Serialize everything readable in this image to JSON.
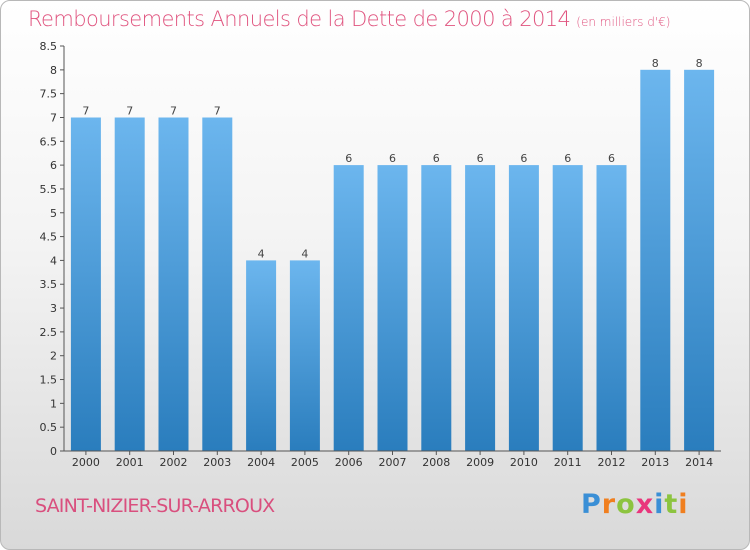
{
  "title": "Remboursements Annuels de la Dette de 2000 à 2014",
  "unit": "(en milliers d'€)",
  "commune": "SAINT-NIZIER-SUR-ARROUX",
  "logo": {
    "text": "Proxiti",
    "letters": [
      {
        "ch": "P",
        "color": "#3a8fd6"
      },
      {
        "ch": "r",
        "color": "#f07f1f"
      },
      {
        "ch": "o",
        "color": "#8cc43f"
      },
      {
        "ch": "x",
        "color": "#e9367c"
      },
      {
        "ch": "i",
        "color": "#3a8fd6"
      },
      {
        "ch": "t",
        "color": "#8cc43f"
      },
      {
        "ch": "i",
        "color": "#f07f1f"
      }
    ]
  },
  "colors": {
    "title": "#e0547f",
    "bar_top": "#6cb6ee",
    "bar_bottom": "#2a7dbd",
    "axis": "#555555"
  },
  "chart_data": {
    "type": "bar",
    "title": "Remboursements Annuels de la Dette de 2000 à 2014",
    "xlabel": "",
    "ylabel": "",
    "categories": [
      "2000",
      "2001",
      "2002",
      "2003",
      "2004",
      "2005",
      "2006",
      "2007",
      "2008",
      "2009",
      "2010",
      "2011",
      "2012",
      "2013",
      "2014"
    ],
    "values": [
      7,
      7,
      7,
      7,
      4,
      4,
      6,
      6,
      6,
      6,
      6,
      6,
      6,
      8,
      8
    ],
    "data_labels": [
      "7",
      "7",
      "7",
      "7",
      "4",
      "4",
      "6",
      "6",
      "6",
      "6",
      "6",
      "6",
      "6",
      "8",
      "8"
    ],
    "ylim": [
      0,
      8.5
    ],
    "yticks": [
      0,
      0.5,
      1,
      1.5,
      2,
      2.5,
      3,
      3.5,
      4,
      4.5,
      5,
      5.5,
      6,
      6.5,
      7,
      7.5,
      8,
      8.5
    ],
    "ytick_labels": [
      "0",
      "0.5",
      "1",
      "1.5",
      "2",
      "2.5",
      "3",
      "3.5",
      "4",
      "4.5",
      "5",
      "5.5",
      "6",
      "6.5",
      "7",
      "7.5",
      "8",
      "8.5"
    ],
    "grid": false,
    "legend": "none"
  }
}
